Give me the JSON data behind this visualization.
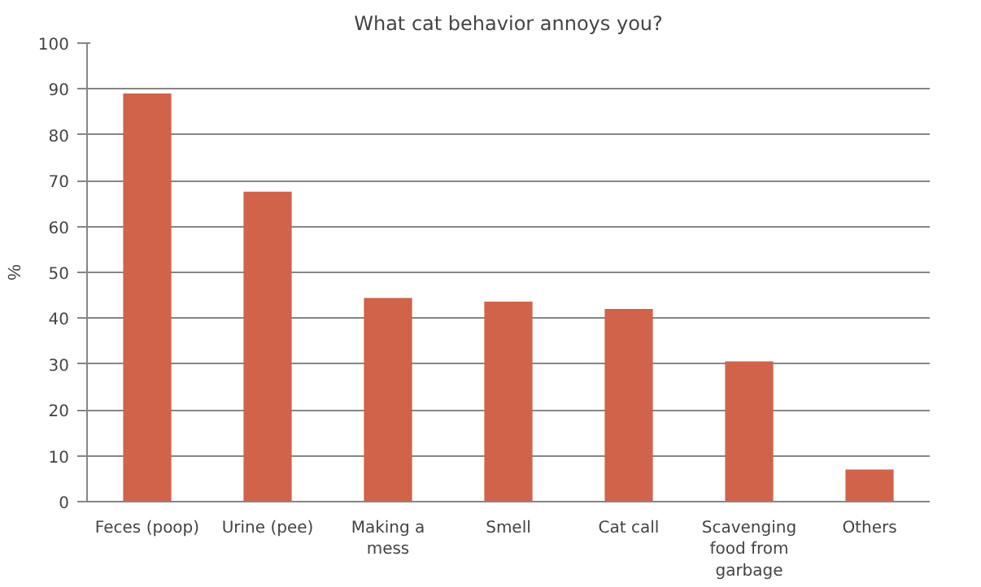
{
  "chart_data": {
    "type": "bar",
    "title": "What cat behavior annoys you?",
    "ylabel": "%",
    "categories": [
      "Feces (poop)",
      "Urine (pee)",
      "Making a mess",
      "Smell",
      "Cat call",
      "Scavenging food from garbage",
      "Others"
    ],
    "values": [
      89,
      67.6,
      44.4,
      43.6,
      42,
      30.6,
      7
    ],
    "color": "#d06349",
    "ylim": [
      0,
      100
    ],
    "yticks": [
      0,
      10,
      20,
      30,
      40,
      50,
      60,
      70,
      80,
      90,
      100
    ],
    "grid": "y"
  }
}
